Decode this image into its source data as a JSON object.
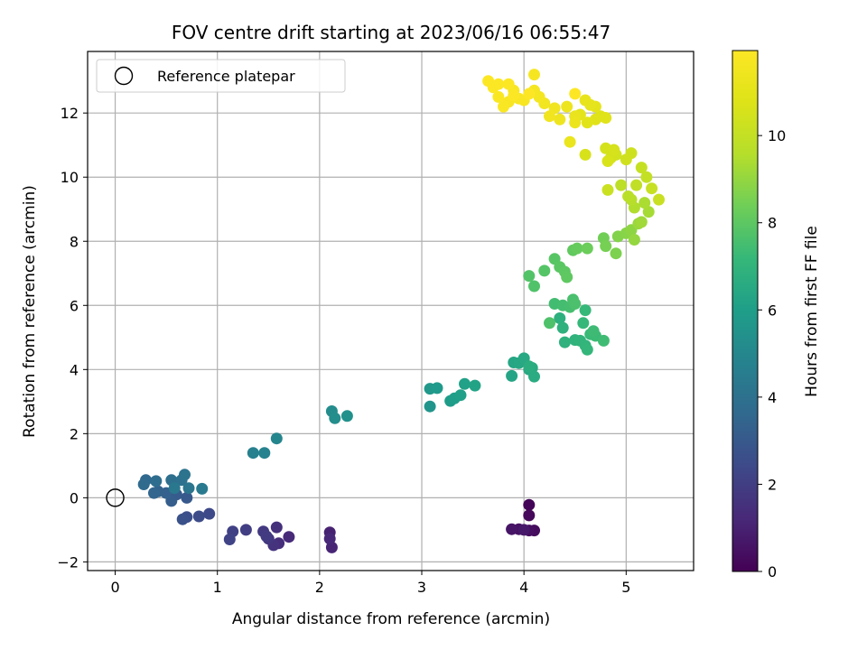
{
  "chart_data": {
    "type": "scatter",
    "title": "FOV centre drift starting at 2023/06/16 06:55:47",
    "xlabel": "Angular distance from reference (arcmin)",
    "ylabel": "Rotation from reference (arcmin)",
    "colorbar_label": "Hours from first FF file",
    "xlim": [
      -0.27,
      5.66
    ],
    "ylim": [
      -2.27,
      13.92
    ],
    "x_ticks": [
      0,
      1,
      2,
      3,
      4,
      5
    ],
    "y_ticks": [
      -2,
      0,
      2,
      4,
      6,
      8,
      10,
      12
    ],
    "colorbar_ticks": [
      0,
      2,
      4,
      6,
      8,
      10
    ],
    "colorbar_range": [
      0,
      11.95
    ],
    "colormap": "viridis",
    "grid": true,
    "legend": {
      "placement": "top-left",
      "entries": [
        {
          "label": "Reference platepar",
          "marker": "hollow-circle",
          "x": 0,
          "y": 0
        }
      ]
    },
    "points": [
      [
        4.05,
        -0.22,
        0.1
      ],
      [
        4.05,
        -0.55,
        0.2
      ],
      [
        4.1,
        -1.02,
        0.3
      ],
      [
        4.05,
        -1.02,
        0.4
      ],
      [
        3.95,
        -0.98,
        0.5
      ],
      [
        3.88,
        -0.98,
        0.6
      ],
      [
        4.0,
        -1.0,
        0.7
      ],
      [
        2.1,
        -1.08,
        1.0
      ],
      [
        2.12,
        -1.55,
        1.1
      ],
      [
        2.1,
        -1.28,
        1.2
      ],
      [
        1.7,
        -1.22,
        1.3
      ],
      [
        1.6,
        -1.42,
        1.4
      ],
      [
        1.58,
        -0.92,
        1.5
      ],
      [
        1.55,
        -1.48,
        1.6
      ],
      [
        1.5,
        -1.28,
        1.7
      ],
      [
        1.45,
        -1.05,
        1.8
      ],
      [
        1.48,
        -1.2,
        1.9
      ],
      [
        1.28,
        -1.0,
        2.0
      ],
      [
        1.15,
        -1.05,
        2.1
      ],
      [
        1.12,
        -1.3,
        2.2
      ],
      [
        0.92,
        -0.5,
        2.4
      ],
      [
        0.82,
        -0.58,
        2.5
      ],
      [
        0.7,
        -0.6,
        2.6
      ],
      [
        0.66,
        -0.67,
        2.7
      ],
      [
        0.7,
        0.0,
        3.0
      ],
      [
        0.6,
        0.1,
        3.1
      ],
      [
        0.55,
        -0.1,
        3.2
      ],
      [
        0.5,
        0.15,
        3.3
      ],
      [
        0.42,
        0.2,
        3.4
      ],
      [
        0.38,
        0.15,
        3.5
      ],
      [
        0.3,
        0.55,
        3.6
      ],
      [
        0.28,
        0.42,
        3.7
      ],
      [
        0.4,
        0.52,
        3.8
      ],
      [
        0.55,
        0.55,
        3.9
      ],
      [
        0.65,
        0.55,
        4.0
      ],
      [
        0.68,
        0.72,
        4.1
      ],
      [
        0.72,
        0.3,
        4.2
      ],
      [
        0.58,
        0.3,
        4.3
      ],
      [
        0.85,
        0.28,
        4.4
      ],
      [
        1.35,
        1.4,
        4.7
      ],
      [
        1.46,
        1.4,
        4.8
      ],
      [
        1.58,
        1.85,
        4.9
      ],
      [
        2.12,
        2.7,
        5.2
      ],
      [
        2.15,
        2.48,
        5.3
      ],
      [
        2.27,
        2.55,
        5.4
      ],
      [
        3.08,
        2.85,
        5.6
      ],
      [
        3.08,
        3.4,
        5.7
      ],
      [
        3.15,
        3.42,
        5.8
      ],
      [
        3.28,
        3.02,
        5.9
      ],
      [
        3.32,
        3.1,
        6.0
      ],
      [
        3.38,
        3.2,
        6.05
      ],
      [
        3.42,
        3.55,
        6.1
      ],
      [
        3.52,
        3.5,
        6.2
      ],
      [
        3.88,
        3.8,
        6.3
      ],
      [
        3.9,
        4.22,
        6.35
      ],
      [
        3.95,
        4.2,
        6.4
      ],
      [
        4.0,
        4.35,
        6.45
      ],
      [
        4.05,
        4.0,
        6.5
      ],
      [
        4.08,
        4.05,
        6.55
      ],
      [
        4.1,
        3.78,
        6.6
      ],
      [
        4.05,
        4.1,
        6.7
      ],
      [
        4.35,
        5.6,
        6.8
      ],
      [
        4.38,
        5.3,
        6.85
      ],
      [
        4.4,
        4.85,
        6.9
      ],
      [
        4.5,
        4.92,
        6.95
      ],
      [
        4.55,
        4.9,
        7.0
      ],
      [
        4.6,
        4.75,
        7.05
      ],
      [
        4.62,
        4.62,
        7.1
      ],
      [
        4.58,
        5.45,
        7.15
      ],
      [
        4.6,
        5.85,
        7.2
      ],
      [
        4.65,
        5.1,
        7.25
      ],
      [
        4.7,
        5.05,
        7.3
      ],
      [
        4.68,
        5.2,
        7.35
      ],
      [
        4.78,
        4.9,
        7.4
      ],
      [
        4.3,
        6.05,
        7.45
      ],
      [
        4.38,
        6.0,
        7.5
      ],
      [
        4.45,
        5.95,
        7.55
      ],
      [
        4.48,
        6.18,
        7.6
      ],
      [
        4.5,
        6.05,
        7.65
      ],
      [
        4.25,
        5.45,
        7.7
      ],
      [
        4.1,
        6.6,
        7.75
      ],
      [
        4.05,
        6.92,
        7.8
      ],
      [
        4.2,
        7.08,
        7.85
      ],
      [
        4.3,
        7.45,
        7.9
      ],
      [
        4.35,
        7.2,
        7.95
      ],
      [
        4.4,
        7.05,
        8.0
      ],
      [
        4.42,
        6.88,
        8.05
      ],
      [
        4.48,
        7.72,
        8.1
      ],
      [
        4.52,
        7.78,
        8.2
      ],
      [
        4.62,
        7.78,
        8.3
      ],
      [
        4.78,
        8.1,
        8.4
      ],
      [
        4.8,
        7.85,
        8.5
      ],
      [
        4.9,
        7.62,
        8.6
      ],
      [
        4.92,
        8.15,
        8.7
      ],
      [
        5.0,
        8.25,
        8.8
      ],
      [
        5.05,
        8.35,
        8.9
      ],
      [
        5.08,
        8.05,
        9.0
      ],
      [
        5.12,
        8.55,
        9.1
      ],
      [
        5.15,
        8.6,
        9.2
      ],
      [
        5.22,
        8.92,
        9.3
      ],
      [
        5.18,
        9.2,
        9.4
      ],
      [
        5.08,
        9.05,
        9.5
      ],
      [
        5.05,
        9.3,
        9.6
      ],
      [
        5.02,
        9.4,
        9.7
      ],
      [
        4.95,
        9.75,
        9.8
      ],
      [
        5.1,
        9.75,
        9.9
      ],
      [
        5.2,
        10.0,
        10.0
      ],
      [
        5.15,
        10.3,
        10.05
      ],
      [
        5.25,
        9.65,
        10.1
      ],
      [
        5.32,
        9.3,
        10.15
      ],
      [
        4.82,
        9.6,
        10.2
      ],
      [
        5.05,
        10.75,
        10.3
      ],
      [
        5.0,
        10.55,
        10.35
      ],
      [
        4.9,
        10.7,
        10.4
      ],
      [
        4.85,
        10.6,
        10.45
      ],
      [
        4.8,
        10.9,
        10.5
      ],
      [
        4.88,
        10.85,
        10.55
      ],
      [
        4.6,
        10.7,
        10.6
      ],
      [
        4.82,
        10.5,
        10.65
      ],
      [
        4.75,
        11.9,
        10.8
      ],
      [
        4.8,
        11.85,
        10.85
      ],
      [
        4.7,
        11.8,
        10.9
      ],
      [
        4.62,
        11.7,
        10.95
      ],
      [
        4.55,
        11.95,
        11.0
      ],
      [
        4.7,
        12.2,
        11.05
      ],
      [
        4.65,
        12.25,
        11.1
      ],
      [
        4.6,
        12.4,
        11.15
      ],
      [
        4.5,
        11.9,
        11.2
      ],
      [
        4.45,
        11.1,
        11.25
      ],
      [
        4.5,
        11.7,
        11.3
      ],
      [
        4.42,
        12.2,
        11.35
      ],
      [
        4.35,
        11.8,
        11.4
      ],
      [
        4.3,
        12.15,
        11.45
      ],
      [
        4.25,
        11.9,
        11.5
      ],
      [
        4.2,
        12.3,
        11.55
      ],
      [
        4.15,
        12.5,
        11.6
      ],
      [
        4.1,
        12.7,
        11.65
      ],
      [
        4.1,
        13.2,
        11.7
      ],
      [
        4.0,
        12.4,
        11.72
      ],
      [
        3.95,
        12.45,
        11.75
      ],
      [
        3.9,
        12.7,
        11.78
      ],
      [
        3.85,
        12.35,
        11.8
      ],
      [
        3.8,
        12.2,
        11.82
      ],
      [
        3.75,
        12.5,
        11.85
      ],
      [
        3.7,
        12.8,
        11.87
      ],
      [
        3.65,
        13.0,
        11.9
      ],
      [
        3.75,
        12.9,
        11.91
      ],
      [
        3.85,
        12.9,
        11.92
      ],
      [
        3.9,
        12.55,
        11.93
      ],
      [
        4.05,
        12.6,
        11.94
      ],
      [
        4.5,
        12.6,
        11.95
      ]
    ]
  }
}
